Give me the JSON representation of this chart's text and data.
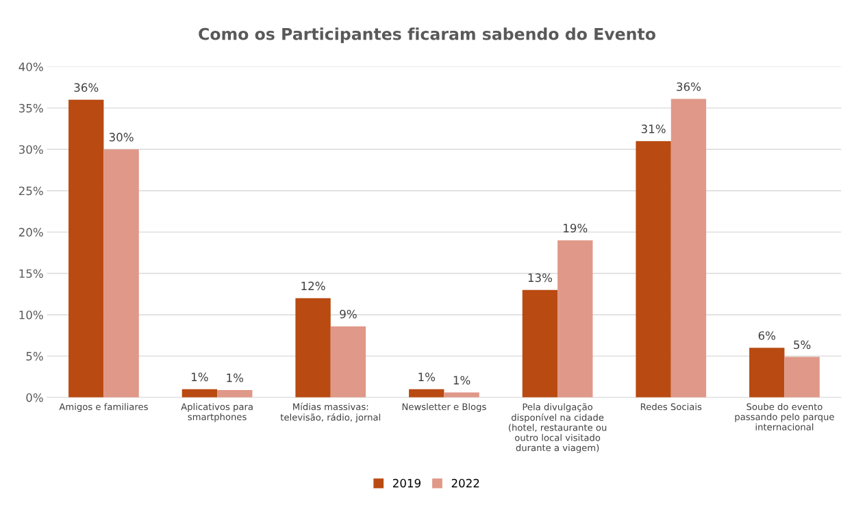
{
  "chart_data": {
    "type": "bar",
    "title": "Como os Participantes ficaram sabendo do Evento",
    "categories": [
      "Amigos e familiares",
      "Aplicativos para\nsmartphones",
      "Mídias massivas:\ntelevisão, rádio, jornal",
      "Newsletter e Blogs",
      "Pela divulgação\ndisponível na cidade\n(hotel, restaurante ou\noutro local visitado\ndurante a viagem)",
      "Redes Sociais",
      "Soube do evento\npassando pelo parque\ninternacional"
    ],
    "series": [
      {
        "name": "2019",
        "color": "#b94a12",
        "values": [
          36,
          1,
          12,
          1,
          13,
          31,
          6
        ],
        "value_labels": [
          "36%",
          "1%",
          "12%",
          "1%",
          "13%",
          "31%",
          "6%"
        ]
      },
      {
        "name": "2022",
        "color": "#e09888",
        "values": [
          30,
          0.9,
          8.6,
          0.6,
          19,
          36.1,
          4.9
        ],
        "value_labels": [
          "30%",
          "1%",
          "9%",
          "1%",
          "19%",
          "36%",
          "5%"
        ]
      }
    ],
    "ylim": [
      0,
      40
    ],
    "yticks": [
      {
        "value": 0,
        "label": "0%"
      },
      {
        "value": 5,
        "label": "5%"
      },
      {
        "value": 10,
        "label": "10%"
      },
      {
        "value": 15,
        "label": "15%"
      },
      {
        "value": 20,
        "label": "20%"
      },
      {
        "value": 25,
        "label": "25%"
      },
      {
        "value": 30,
        "label": "30%"
      },
      {
        "value": 35,
        "label": "35%"
      },
      {
        "value": 40,
        "label": "40%"
      }
    ],
    "grid": "y",
    "legend": "bottom"
  }
}
